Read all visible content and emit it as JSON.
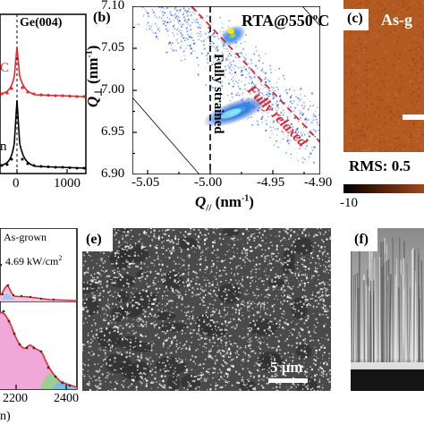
{
  "panel_a": {
    "peak_label": "Ge(004)",
    "red_fragment": "C",
    "black_fragment": "n",
    "ticks": [
      "0",
      "1000"
    ]
  },
  "panel_b": {
    "label": "(b)",
    "rta_label": "RTA@550",
    "rta_sup": "o",
    "rta_unit": "C",
    "fully_relaxed": "Fully relaxed",
    "fully_strained": "Fully strained",
    "ylabel_main": "Q",
    "ylabel_sub": "⊥",
    "ylabel_unit": "(nm",
    "ylabel_unit_sup": "-1",
    "ylabel_unit_end": ")",
    "xlabel_main": "Q",
    "xlabel_sub": "//",
    "xlabel_unit": "(nm",
    "xlabel_unit_sup": "-1",
    "xlabel_unit_end": ")",
    "yticks": [
      "7.10",
      "7.05",
      "7.00",
      "6.95",
      "6.90"
    ],
    "xticks": [
      "-5.05",
      "-5.00",
      "-4.95",
      "-4.90"
    ]
  },
  "panel_c": {
    "label": "(c)",
    "title_fragment": "As-g",
    "rms_fragment": "RMS: 0.5",
    "scale_min": "-10"
  },
  "panel_d": {
    "legend1": "As-grown",
    "legend2": ", 4.69 kW/cm",
    "legend2_sup": "2",
    "ticks": [
      "2200",
      "2400"
    ],
    "xlabel_fragment": "n)"
  },
  "panel_e": {
    "label": "(e)",
    "scalebar": "5 μm"
  },
  "panel_f": {
    "label": "(f)"
  },
  "colors": {
    "red": "#e8262a",
    "dashed_red": "#e0242a",
    "afm": "#b35a22",
    "sem_bg": "#4a4a4a"
  }
}
